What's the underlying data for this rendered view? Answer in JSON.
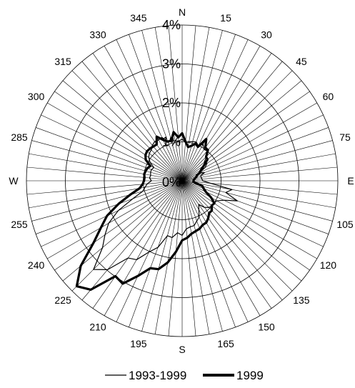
{
  "chart_data": {
    "type": "radar",
    "direction_labels": [
      "N",
      "15",
      "30",
      "45",
      "60",
      "75",
      "E",
      "105",
      "120",
      "135",
      "150",
      "165",
      "S",
      "195",
      "210",
      "225",
      "240",
      "255",
      "W",
      "285",
      "300",
      "315",
      "330",
      "345"
    ],
    "ring_labels": [
      "0%",
      "1%",
      "2%",
      "3%",
      "4%"
    ],
    "rlim": [
      0,
      4
    ],
    "grid": true,
    "bins_degrees": 5,
    "legend_position": "bottom",
    "series": [
      {
        "name": "1993-1999",
        "color": "#000000",
        "values": [
          1.07,
          0.99,
          1.02,
          1.04,
          1.06,
          0.99,
          1.08,
          0.98,
          1.0,
          0.89,
          0.74,
          0.78,
          0.68,
          0.49,
          0.61,
          0.49,
          0.5,
          0.51,
          0.53,
          0.73,
          1.3,
          1.16,
          1.51,
          1.18,
          1.03,
          1.0,
          1.0,
          0.97,
          0.89,
          0.74,
          0.86,
          1.03,
          1.1,
          1.19,
          1.2,
          1.24,
          1.4,
          1.34,
          1.48,
          1.46,
          1.82,
          2.02,
          2.34,
          2.42,
          2.98,
          3.22,
          2.67,
          2.42,
          2.18,
          1.81,
          1.35,
          1.05,
          0.97,
          0.9,
          0.79,
          0.84,
          0.82,
          0.84,
          0.84,
          0.8,
          0.95,
          1.05,
          1.1,
          1.12,
          1.19,
          1.23,
          1.21,
          1.23,
          1.05,
          1.07,
          1.04,
          1.02
        ]
      },
      {
        "name": "1999",
        "color": "#000000",
        "values": [
          1.22,
          1.01,
          0.88,
          0.93,
          1.02,
          0.96,
          1.24,
          1.04,
          1.03,
          0.87,
          0.85,
          0.68,
          0.56,
          0.5,
          0.4,
          0.38,
          0.33,
          0.3,
          0.29,
          0.29,
          0.37,
          0.54,
          0.59,
          0.67,
          0.86,
          1.01,
          0.99,
          1.08,
          1.08,
          1.17,
          1.24,
          1.25,
          1.31,
          1.34,
          1.38,
          1.47,
          1.53,
          1.83,
          2.13,
          2.35,
          2.39,
          2.7,
          3.05,
          2.99,
          3.65,
          3.83,
          3.4,
          2.78,
          2.41,
          2.13,
          1.74,
          1.38,
          1.11,
          1.02,
          0.98,
          0.97,
          0.99,
          0.97,
          0.95,
          0.9,
          1.08,
          1.15,
          1.18,
          1.17,
          1.15,
          1.14,
          1.31,
          1.16,
          1.07,
          1.07,
          1.27,
          1.12
        ]
      }
    ]
  }
}
